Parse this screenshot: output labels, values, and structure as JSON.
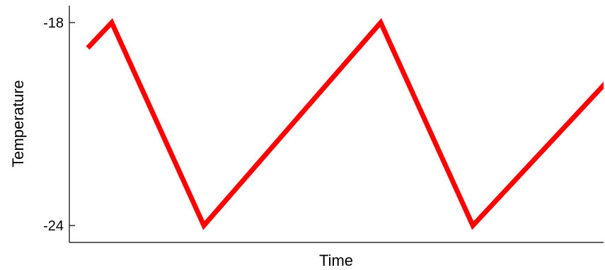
{
  "chart_data": {
    "type": "line",
    "xlabel": "Time",
    "ylabel": "Temperature",
    "xlim": [
      0,
      29
    ],
    "ylim": [
      -24.5,
      -17.5
    ],
    "yticks": [
      -18,
      -24
    ],
    "yticklabels": [
      "-18",
      "-24"
    ],
    "grid": false,
    "series": [
      {
        "color": "#ff0000",
        "x": [
          1,
          2.3,
          7.3,
          16.9,
          21.9,
          30.8
        ],
        "y": [
          -18.75,
          -18,
          -24,
          -18,
          -24,
          -18.8
        ]
      }
    ]
  }
}
